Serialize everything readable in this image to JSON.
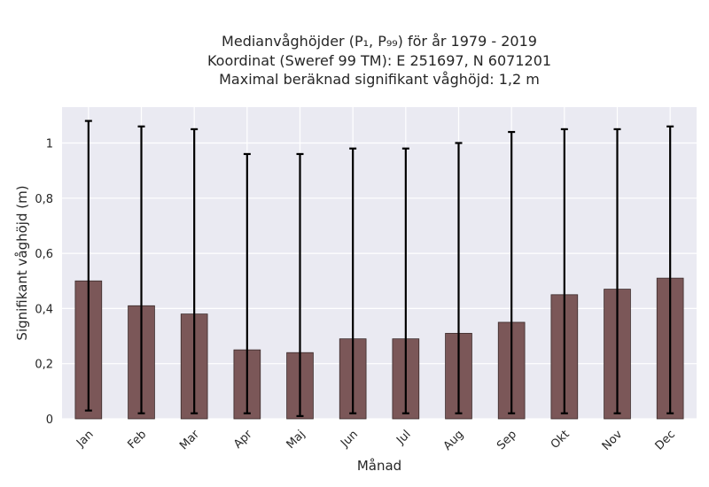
{
  "chart_data": {
    "type": "bar",
    "title_lines": [
      "Medianvåghöjder (P₁, P₉₉) för år 1979 - 2019",
      "Koordinat (Sweref 99 TM): E 251697, N 6071201",
      "Maximal beräknad signifikant våghöjd: 1,2 m"
    ],
    "xlabel": "Månad",
    "ylabel": "Signifikant våghöjd (m)",
    "categories": [
      "Jan",
      "Feb",
      "Mar",
      "Apr",
      "Maj",
      "Jun",
      "Jul",
      "Aug",
      "Sep",
      "Okt",
      "Nov",
      "Dec"
    ],
    "values": [
      0.5,
      0.41,
      0.38,
      0.25,
      0.24,
      0.29,
      0.29,
      0.31,
      0.35,
      0.45,
      0.47,
      0.51
    ],
    "err_low": [
      0.03,
      0.02,
      0.02,
      0.02,
      0.01,
      0.02,
      0.02,
      0.02,
      0.02,
      0.02,
      0.02,
      0.02
    ],
    "err_high": [
      1.08,
      1.06,
      1.05,
      0.96,
      0.96,
      0.98,
      0.98,
      1.0,
      1.04,
      1.05,
      1.05,
      1.06
    ],
    "yticks": [
      0,
      0.2,
      0.4,
      0.6,
      0.8,
      1
    ],
    "ytick_labels": [
      "0",
      "0,2",
      "0,4",
      "0,6",
      "0,8",
      "1"
    ],
    "ylim": [
      0,
      1.13
    ],
    "grid": true,
    "colors": {
      "bar": "#7b5758",
      "plot_background": "#eaeaf2",
      "error_bar": "#000000"
    }
  }
}
